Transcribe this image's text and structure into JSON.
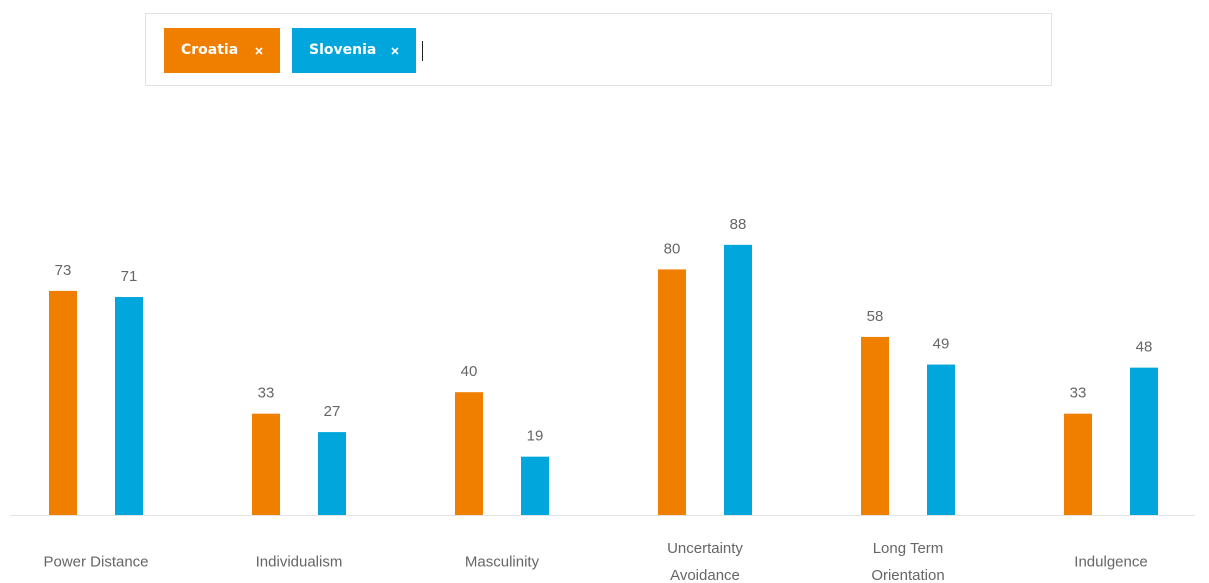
{
  "chart_data": {
    "type": "bar",
    "categories": [
      "Power Distance",
      "Individualism",
      "Masculinity",
      "Uncertainty Avoidance",
      "Long Term Orientation",
      "Indulgence"
    ],
    "series": [
      {
        "name": "Croatia",
        "color": "#f07f00",
        "values": [
          73,
          33,
          40,
          80,
          58,
          33
        ]
      },
      {
        "name": "Slovenia",
        "color": "#00a6dc",
        "values": [
          71,
          27,
          19,
          88,
          49,
          48
        ]
      }
    ]
  }
}
